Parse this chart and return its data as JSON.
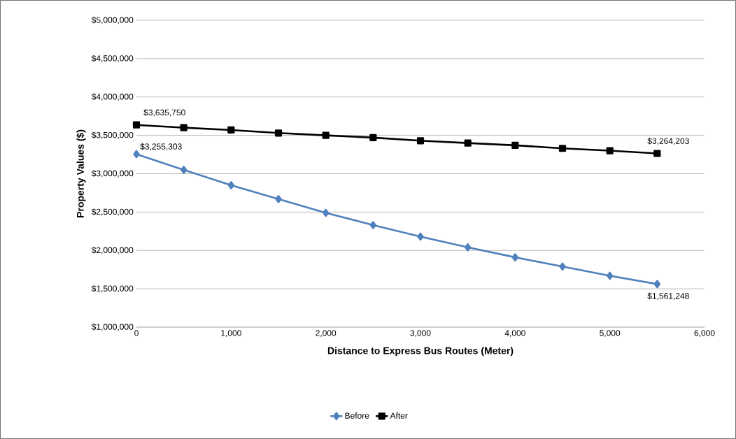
{
  "chart_data": {
    "type": "line",
    "xlabel": "Distance to Express Bus Routes (Meter)",
    "ylabel": "Property Values ($)",
    "x": [
      0,
      500,
      1000,
      1500,
      2000,
      2500,
      3000,
      3500,
      4000,
      4500,
      5000,
      5500
    ],
    "series": [
      {
        "name": "Before",
        "color": "#4f81bd",
        "marker": "diamond",
        "values": [
          3255303,
          3050000,
          2850000,
          2670000,
          2490000,
          2330000,
          2180000,
          2040000,
          1910000,
          1790000,
          1670000,
          1561248
        ],
        "value_labels": [
          "$3,255,303",
          null,
          null,
          null,
          null,
          null,
          null,
          null,
          null,
          null,
          null,
          "$1,561,248"
        ]
      },
      {
        "name": "After",
        "color": "#000000",
        "marker": "square",
        "values": [
          3635750,
          3600000,
          3570000,
          3530000,
          3500000,
          3470000,
          3430000,
          3400000,
          3370000,
          3330000,
          3300000,
          3264203
        ],
        "value_labels": [
          "$3,635,750",
          null,
          null,
          null,
          null,
          null,
          null,
          null,
          null,
          null,
          null,
          "$3,264,203"
        ]
      }
    ],
    "xlim": [
      0,
      6000
    ],
    "xticks": [
      0,
      {
        "value": 1000,
        "label": "1,000"
      },
      {
        "value": 2000,
        "label": "2,000"
      },
      {
        "value": 3000,
        "label": "3,000"
      },
      {
        "value": 4000,
        "label": "4,000"
      },
      {
        "value": 5000,
        "label": "5,000"
      },
      {
        "value": 6000,
        "label": "6,000"
      }
    ],
    "ylim": [
      1000000,
      5000000
    ],
    "yticks": [
      {
        "value": 1000000,
        "label": "$1,000,000"
      },
      {
        "value": 1500000,
        "label": "$1,500,000"
      },
      {
        "value": 2000000,
        "label": "$2,000,000"
      },
      {
        "value": 2500000,
        "label": "$2,500,000"
      },
      {
        "value": 3000000,
        "label": "$3,000,000"
      },
      {
        "value": 3500000,
        "label": "$3,500,000"
      },
      {
        "value": 4000000,
        "label": "$4,000,000"
      },
      {
        "value": 4500000,
        "label": "$4,500,000"
      },
      {
        "value": 5000000,
        "label": "$5,000,000"
      }
    ],
    "grid": "y",
    "legend": "bottom",
    "line_style": "solid"
  }
}
